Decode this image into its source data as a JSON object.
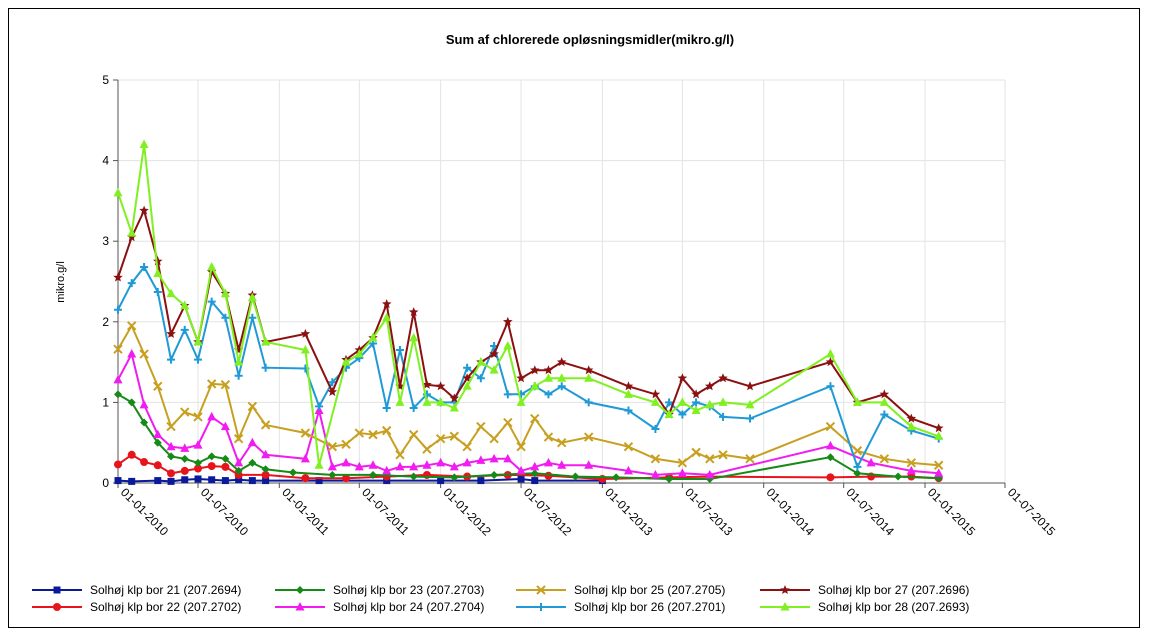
{
  "chart_data": {
    "type": "line",
    "title": "Sum af chlorerede opløsningsmidler(mikro.g/l)",
    "xlabel": "",
    "ylabel": "mikro.g/l",
    "ylim": [
      0,
      5
    ],
    "yticks": [
      "0",
      "1",
      "2",
      "3",
      "4",
      "5"
    ],
    "xlim": [
      "2010-01-01",
      "2015-07-01"
    ],
    "xticks": [
      "2010-01-01",
      "2010-07-01",
      "2011-01-01",
      "2011-07-01",
      "2012-01-01",
      "2012-07-01",
      "2013-01-01",
      "2013-07-01",
      "2014-01-01",
      "2014-07-01",
      "2015-01-01",
      "2015-07-01"
    ],
    "xtick_labels": [
      "01-01-2010",
      "01-07-2010",
      "01-01-2011",
      "01-07-2011",
      "01-01-2012",
      "01-07-2012",
      "01-01-2013",
      "01-07-2013",
      "01-01-2014",
      "01-07-2014",
      "01-01-2015",
      "01-07-2015"
    ],
    "grid": true,
    "legend_position": "bottom",
    "series": [
      {
        "name": "Solhøj klp bor 21 (207.2694)",
        "color": "#0a1a9a",
        "marker": "square",
        "x": [
          "2010-01-01",
          "2010-02-01",
          "2010-04-01",
          "2010-05-01",
          "2010-06-01",
          "2010-07-01",
          "2010-08-01",
          "2010-09-01",
          "2010-10-01",
          "2010-11-01",
          "2010-12-01",
          "2011-04-01",
          "2011-09-01",
          "2012-01-01",
          "2012-04-01",
          "2012-07-01",
          "2012-08-01",
          "2013-01-01"
        ],
        "y": [
          0.03,
          0.02,
          0.03,
          0.02,
          0.04,
          0.05,
          0.04,
          0.03,
          0.04,
          0.03,
          0.03,
          0.03,
          0.03,
          0.03,
          0.03,
          0.05,
          0.03,
          0.03
        ]
      },
      {
        "name": "Solhøj klp bor 22 (207.2702)",
        "color": "#e8141c",
        "marker": "circle",
        "x": [
          "2010-01-01",
          "2010-02-01",
          "2010-03-01",
          "2010-04-01",
          "2010-05-01",
          "2010-06-01",
          "2010-07-01",
          "2010-08-01",
          "2010-09-01",
          "2010-10-01",
          "2010-12-01",
          "2011-03-01",
          "2011-06-01",
          "2011-09-01",
          "2011-12-01",
          "2012-03-01",
          "2012-06-01",
          "2012-09-01",
          "2013-01-01",
          "2013-06-01",
          "2013-09-01",
          "2014-06-01",
          "2014-09-01",
          "2014-12-01",
          "2015-02-01"
        ],
        "y": [
          0.23,
          0.35,
          0.26,
          0.22,
          0.12,
          0.15,
          0.18,
          0.21,
          0.2,
          0.1,
          0.1,
          0.06,
          0.06,
          0.08,
          0.1,
          0.08,
          0.1,
          0.09,
          0.05,
          0.07,
          0.08,
          0.07,
          0.08,
          0.08,
          0.06
        ]
      },
      {
        "name": "Solhøj klp bor 23 (207.2703)",
        "color": "#168a16",
        "marker": "diamond",
        "x": [
          "2010-01-01",
          "2010-02-01",
          "2010-03-01",
          "2010-04-01",
          "2010-05-01",
          "2010-06-01",
          "2010-07-01",
          "2010-08-01",
          "2010-09-01",
          "2010-10-01",
          "2010-11-01",
          "2010-12-01",
          "2011-02-01",
          "2011-05-01",
          "2011-08-01",
          "2011-11-01",
          "2012-02-01",
          "2012-05-01",
          "2012-08-01",
          "2012-11-01",
          "2013-02-01",
          "2013-06-01",
          "2013-09-01",
          "2014-06-01",
          "2014-08-01",
          "2014-11-01",
          "2015-02-01"
        ],
        "y": [
          1.1,
          1.0,
          0.75,
          0.5,
          0.33,
          0.3,
          0.25,
          0.33,
          0.3,
          0.15,
          0.25,
          0.17,
          0.13,
          0.1,
          0.1,
          0.08,
          0.07,
          0.1,
          0.12,
          0.08,
          0.07,
          0.05,
          0.05,
          0.32,
          0.12,
          0.08,
          0.06
        ]
      },
      {
        "name": "Solhøj klp bor 24 (207.2704)",
        "color": "#f01cf0",
        "marker": "triangle",
        "x": [
          "2010-01-01",
          "2010-02-01",
          "2010-03-01",
          "2010-04-01",
          "2010-05-01",
          "2010-06-01",
          "2010-07-01",
          "2010-08-01",
          "2010-09-01",
          "2010-10-01",
          "2010-11-01",
          "2010-12-01",
          "2011-03-01",
          "2011-04-01",
          "2011-05-01",
          "2011-06-01",
          "2011-07-01",
          "2011-08-01",
          "2011-09-01",
          "2011-10-01",
          "2011-11-01",
          "2011-12-01",
          "2012-01-01",
          "2012-02-01",
          "2012-03-01",
          "2012-04-01",
          "2012-05-01",
          "2012-06-01",
          "2012-07-01",
          "2012-08-01",
          "2012-09-01",
          "2012-10-01",
          "2012-12-01",
          "2013-03-01",
          "2013-05-01",
          "2013-07-01",
          "2013-09-01",
          "2014-06-01",
          "2014-09-01",
          "2014-12-01",
          "2015-02-01"
        ],
        "y": [
          1.28,
          1.6,
          0.97,
          0.6,
          0.45,
          0.43,
          0.47,
          0.82,
          0.7,
          0.25,
          0.5,
          0.35,
          0.3,
          0.9,
          0.2,
          0.25,
          0.2,
          0.22,
          0.15,
          0.2,
          0.2,
          0.22,
          0.25,
          0.2,
          0.25,
          0.28,
          0.3,
          0.3,
          0.15,
          0.2,
          0.25,
          0.22,
          0.22,
          0.15,
          0.1,
          0.12,
          0.1,
          0.46,
          0.25,
          0.15,
          0.12
        ]
      },
      {
        "name": "Solhøj klp bor 25 (207.2705)",
        "color": "#c8a020",
        "marker": "x",
        "x": [
          "2010-01-01",
          "2010-02-01",
          "2010-03-01",
          "2010-04-01",
          "2010-05-01",
          "2010-06-01",
          "2010-07-01",
          "2010-08-01",
          "2010-09-01",
          "2010-10-01",
          "2010-11-01",
          "2010-12-01",
          "2011-03-01",
          "2011-05-01",
          "2011-06-01",
          "2011-07-01",
          "2011-08-01",
          "2011-09-01",
          "2011-10-01",
          "2011-11-01",
          "2011-12-01",
          "2012-01-01",
          "2012-02-01",
          "2012-03-01",
          "2012-04-01",
          "2012-05-01",
          "2012-06-01",
          "2012-07-01",
          "2012-08-01",
          "2012-09-01",
          "2012-10-01",
          "2012-12-01",
          "2013-03-01",
          "2013-05-01",
          "2013-07-01",
          "2013-08-01",
          "2013-09-01",
          "2013-10-01",
          "2013-12-01",
          "2014-06-01",
          "2014-08-01",
          "2014-10-01",
          "2014-12-01",
          "2015-02-01"
        ],
        "y": [
          1.66,
          1.95,
          1.6,
          1.2,
          0.7,
          0.88,
          0.82,
          1.23,
          1.22,
          0.55,
          0.95,
          0.72,
          0.62,
          0.45,
          0.48,
          0.62,
          0.6,
          0.65,
          0.35,
          0.6,
          0.42,
          0.55,
          0.58,
          0.45,
          0.7,
          0.55,
          0.75,
          0.45,
          0.8,
          0.57,
          0.5,
          0.57,
          0.45,
          0.3,
          0.25,
          0.38,
          0.3,
          0.35,
          0.3,
          0.7,
          0.4,
          0.3,
          0.25,
          0.22
        ]
      },
      {
        "name": "Solhøj klp bor 26 (207.2701)",
        "color": "#1f9ad6",
        "marker": "plus",
        "x": [
          "2010-01-01",
          "2010-02-01",
          "2010-03-01",
          "2010-04-01",
          "2010-05-01",
          "2010-06-01",
          "2010-07-01",
          "2010-08-01",
          "2010-09-01",
          "2010-10-01",
          "2010-11-01",
          "2010-12-01",
          "2011-03-01",
          "2011-04-01",
          "2011-05-01",
          "2011-06-01",
          "2011-07-01",
          "2011-08-01",
          "2011-09-01",
          "2011-10-01",
          "2011-11-01",
          "2011-12-01",
          "2012-01-01",
          "2012-02-01",
          "2012-03-01",
          "2012-04-01",
          "2012-05-01",
          "2012-06-01",
          "2012-07-01",
          "2012-08-01",
          "2012-09-01",
          "2012-10-01",
          "2012-12-01",
          "2013-03-01",
          "2013-05-01",
          "2013-06-01",
          "2013-07-01",
          "2013-08-01",
          "2013-09-01",
          "2013-10-01",
          "2013-12-01",
          "2014-06-01",
          "2014-08-01",
          "2014-10-01",
          "2014-12-01",
          "2015-02-01"
        ],
        "y": [
          2.15,
          2.48,
          2.68,
          2.37,
          1.53,
          1.9,
          1.53,
          2.25,
          2.05,
          1.33,
          2.05,
          1.43,
          1.42,
          0.95,
          1.25,
          1.43,
          1.55,
          1.73,
          0.93,
          1.65,
          0.93,
          1.1,
          1.0,
          1.0,
          1.43,
          1.3,
          1.7,
          1.1,
          1.1,
          1.2,
          1.1,
          1.2,
          1.0,
          0.9,
          0.67,
          1.0,
          0.85,
          1.0,
          0.95,
          0.82,
          0.8,
          1.2,
          0.2,
          0.85,
          0.65,
          0.55
        ]
      },
      {
        "name": "Solhøj klp bor 27 (207.2696)",
        "color": "#8b1010",
        "marker": "star",
        "x": [
          "2010-01-01",
          "2010-02-01",
          "2010-03-01",
          "2010-04-01",
          "2010-05-01",
          "2010-06-01",
          "2010-07-01",
          "2010-08-01",
          "2010-09-01",
          "2010-10-01",
          "2010-11-01",
          "2010-12-01",
          "2011-03-01",
          "2011-05-01",
          "2011-06-01",
          "2011-07-01",
          "2011-08-01",
          "2011-09-01",
          "2011-10-01",
          "2011-11-01",
          "2011-12-01",
          "2012-01-01",
          "2012-02-01",
          "2012-03-01",
          "2012-04-01",
          "2012-05-01",
          "2012-06-01",
          "2012-07-01",
          "2012-08-01",
          "2012-09-01",
          "2012-10-01",
          "2012-12-01",
          "2013-03-01",
          "2013-05-01",
          "2013-06-01",
          "2013-07-01",
          "2013-08-01",
          "2013-09-01",
          "2013-10-01",
          "2013-12-01",
          "2014-06-01",
          "2014-08-01",
          "2014-10-01",
          "2014-12-01",
          "2015-02-01"
        ],
        "y": [
          2.55,
          3.05,
          3.38,
          2.75,
          1.85,
          2.2,
          1.75,
          2.62,
          2.35,
          1.65,
          2.33,
          1.75,
          1.85,
          1.13,
          1.53,
          1.65,
          1.8,
          2.22,
          1.2,
          2.12,
          1.22,
          1.2,
          1.05,
          1.3,
          1.5,
          1.6,
          2.0,
          1.3,
          1.4,
          1.4,
          1.5,
          1.4,
          1.2,
          1.1,
          0.85,
          1.3,
          1.1,
          1.2,
          1.3,
          1.2,
          1.5,
          1.0,
          1.1,
          0.8,
          0.68
        ]
      },
      {
        "name": "Solhøj klp bor 28 (207.2693)",
        "color": "#80f020",
        "marker": "triangle",
        "x": [
          "2010-01-01",
          "2010-02-01",
          "2010-03-01",
          "2010-04-01",
          "2010-05-01",
          "2010-06-01",
          "2010-07-01",
          "2010-08-01",
          "2010-09-01",
          "2010-10-01",
          "2010-11-01",
          "2010-12-01",
          "2011-03-01",
          "2011-04-01",
          "2011-06-01",
          "2011-07-01",
          "2011-08-01",
          "2011-09-01",
          "2011-10-01",
          "2011-11-01",
          "2011-12-01",
          "2012-01-01",
          "2012-02-01",
          "2012-03-01",
          "2012-04-01",
          "2012-05-01",
          "2012-06-01",
          "2012-07-01",
          "2012-08-01",
          "2012-09-01",
          "2012-10-01",
          "2012-12-01",
          "2013-03-01",
          "2013-05-01",
          "2013-06-01",
          "2013-07-01",
          "2013-08-01",
          "2013-09-01",
          "2013-10-01",
          "2013-12-01",
          "2014-06-01",
          "2014-08-01",
          "2014-10-01",
          "2014-12-01",
          "2015-02-01"
        ],
        "y": [
          3.6,
          3.1,
          4.2,
          2.6,
          2.35,
          2.2,
          1.75,
          2.68,
          2.35,
          1.5,
          2.3,
          1.75,
          1.65,
          0.22,
          1.5,
          1.6,
          1.8,
          2.05,
          1.0,
          1.8,
          1.0,
          1.0,
          0.93,
          1.2,
          1.5,
          1.4,
          1.7,
          1.0,
          1.2,
          1.3,
          1.3,
          1.3,
          1.1,
          1.0,
          0.85,
          1.0,
          0.9,
          0.97,
          1.0,
          0.97,
          1.6,
          1.0,
          1.0,
          0.7,
          0.58
        ]
      }
    ]
  }
}
